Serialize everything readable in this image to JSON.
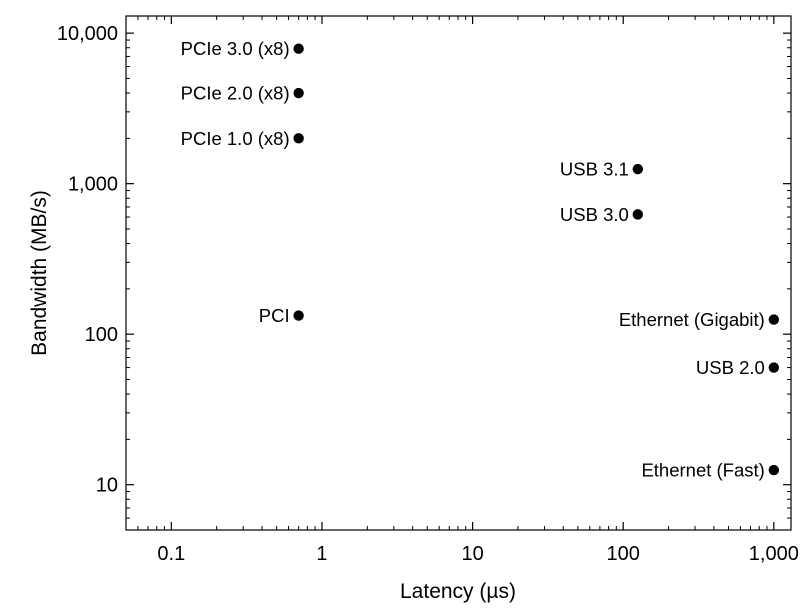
{
  "chart_data": {
    "type": "scatter",
    "xlabel": "Latency (µs)",
    "ylabel": "Bandwidth (MB/s)",
    "x_scale": "log",
    "y_scale": "log",
    "xlim": [
      0.05,
      1300
    ],
    "ylim": [
      5,
      13000
    ],
    "grid": false,
    "legend": "none",
    "x_ticks": [
      {
        "value": 0.1,
        "label": "0.1"
      },
      {
        "value": 1,
        "label": "1"
      },
      {
        "value": 10,
        "label": "10"
      },
      {
        "value": 100,
        "label": "100"
      },
      {
        "value": 1000,
        "label": "1,000"
      }
    ],
    "y_ticks": [
      {
        "value": 10,
        "label": "10"
      },
      {
        "value": 100,
        "label": "100"
      },
      {
        "value": 1000,
        "label": "1,000"
      },
      {
        "value": 10000,
        "label": "10,000"
      }
    ],
    "points": [
      {
        "label": "PCIe 3.0 (x8)",
        "x": 0.7,
        "y": 7880
      },
      {
        "label": "PCIe 2.0 (x8)",
        "x": 0.7,
        "y": 4000
      },
      {
        "label": "PCIe 1.0 (x8)",
        "x": 0.7,
        "y": 2000
      },
      {
        "label": "PCI",
        "x": 0.7,
        "y": 133
      },
      {
        "label": "USB 3.1",
        "x": 125,
        "y": 1250
      },
      {
        "label": "USB 3.0",
        "x": 125,
        "y": 625
      },
      {
        "label": "Ethernet (Gigabit)",
        "x": 1000,
        "y": 125
      },
      {
        "label": "USB 2.0",
        "x": 1000,
        "y": 60
      },
      {
        "label": "Ethernet (Fast)",
        "x": 1000,
        "y": 12.5
      }
    ]
  }
}
